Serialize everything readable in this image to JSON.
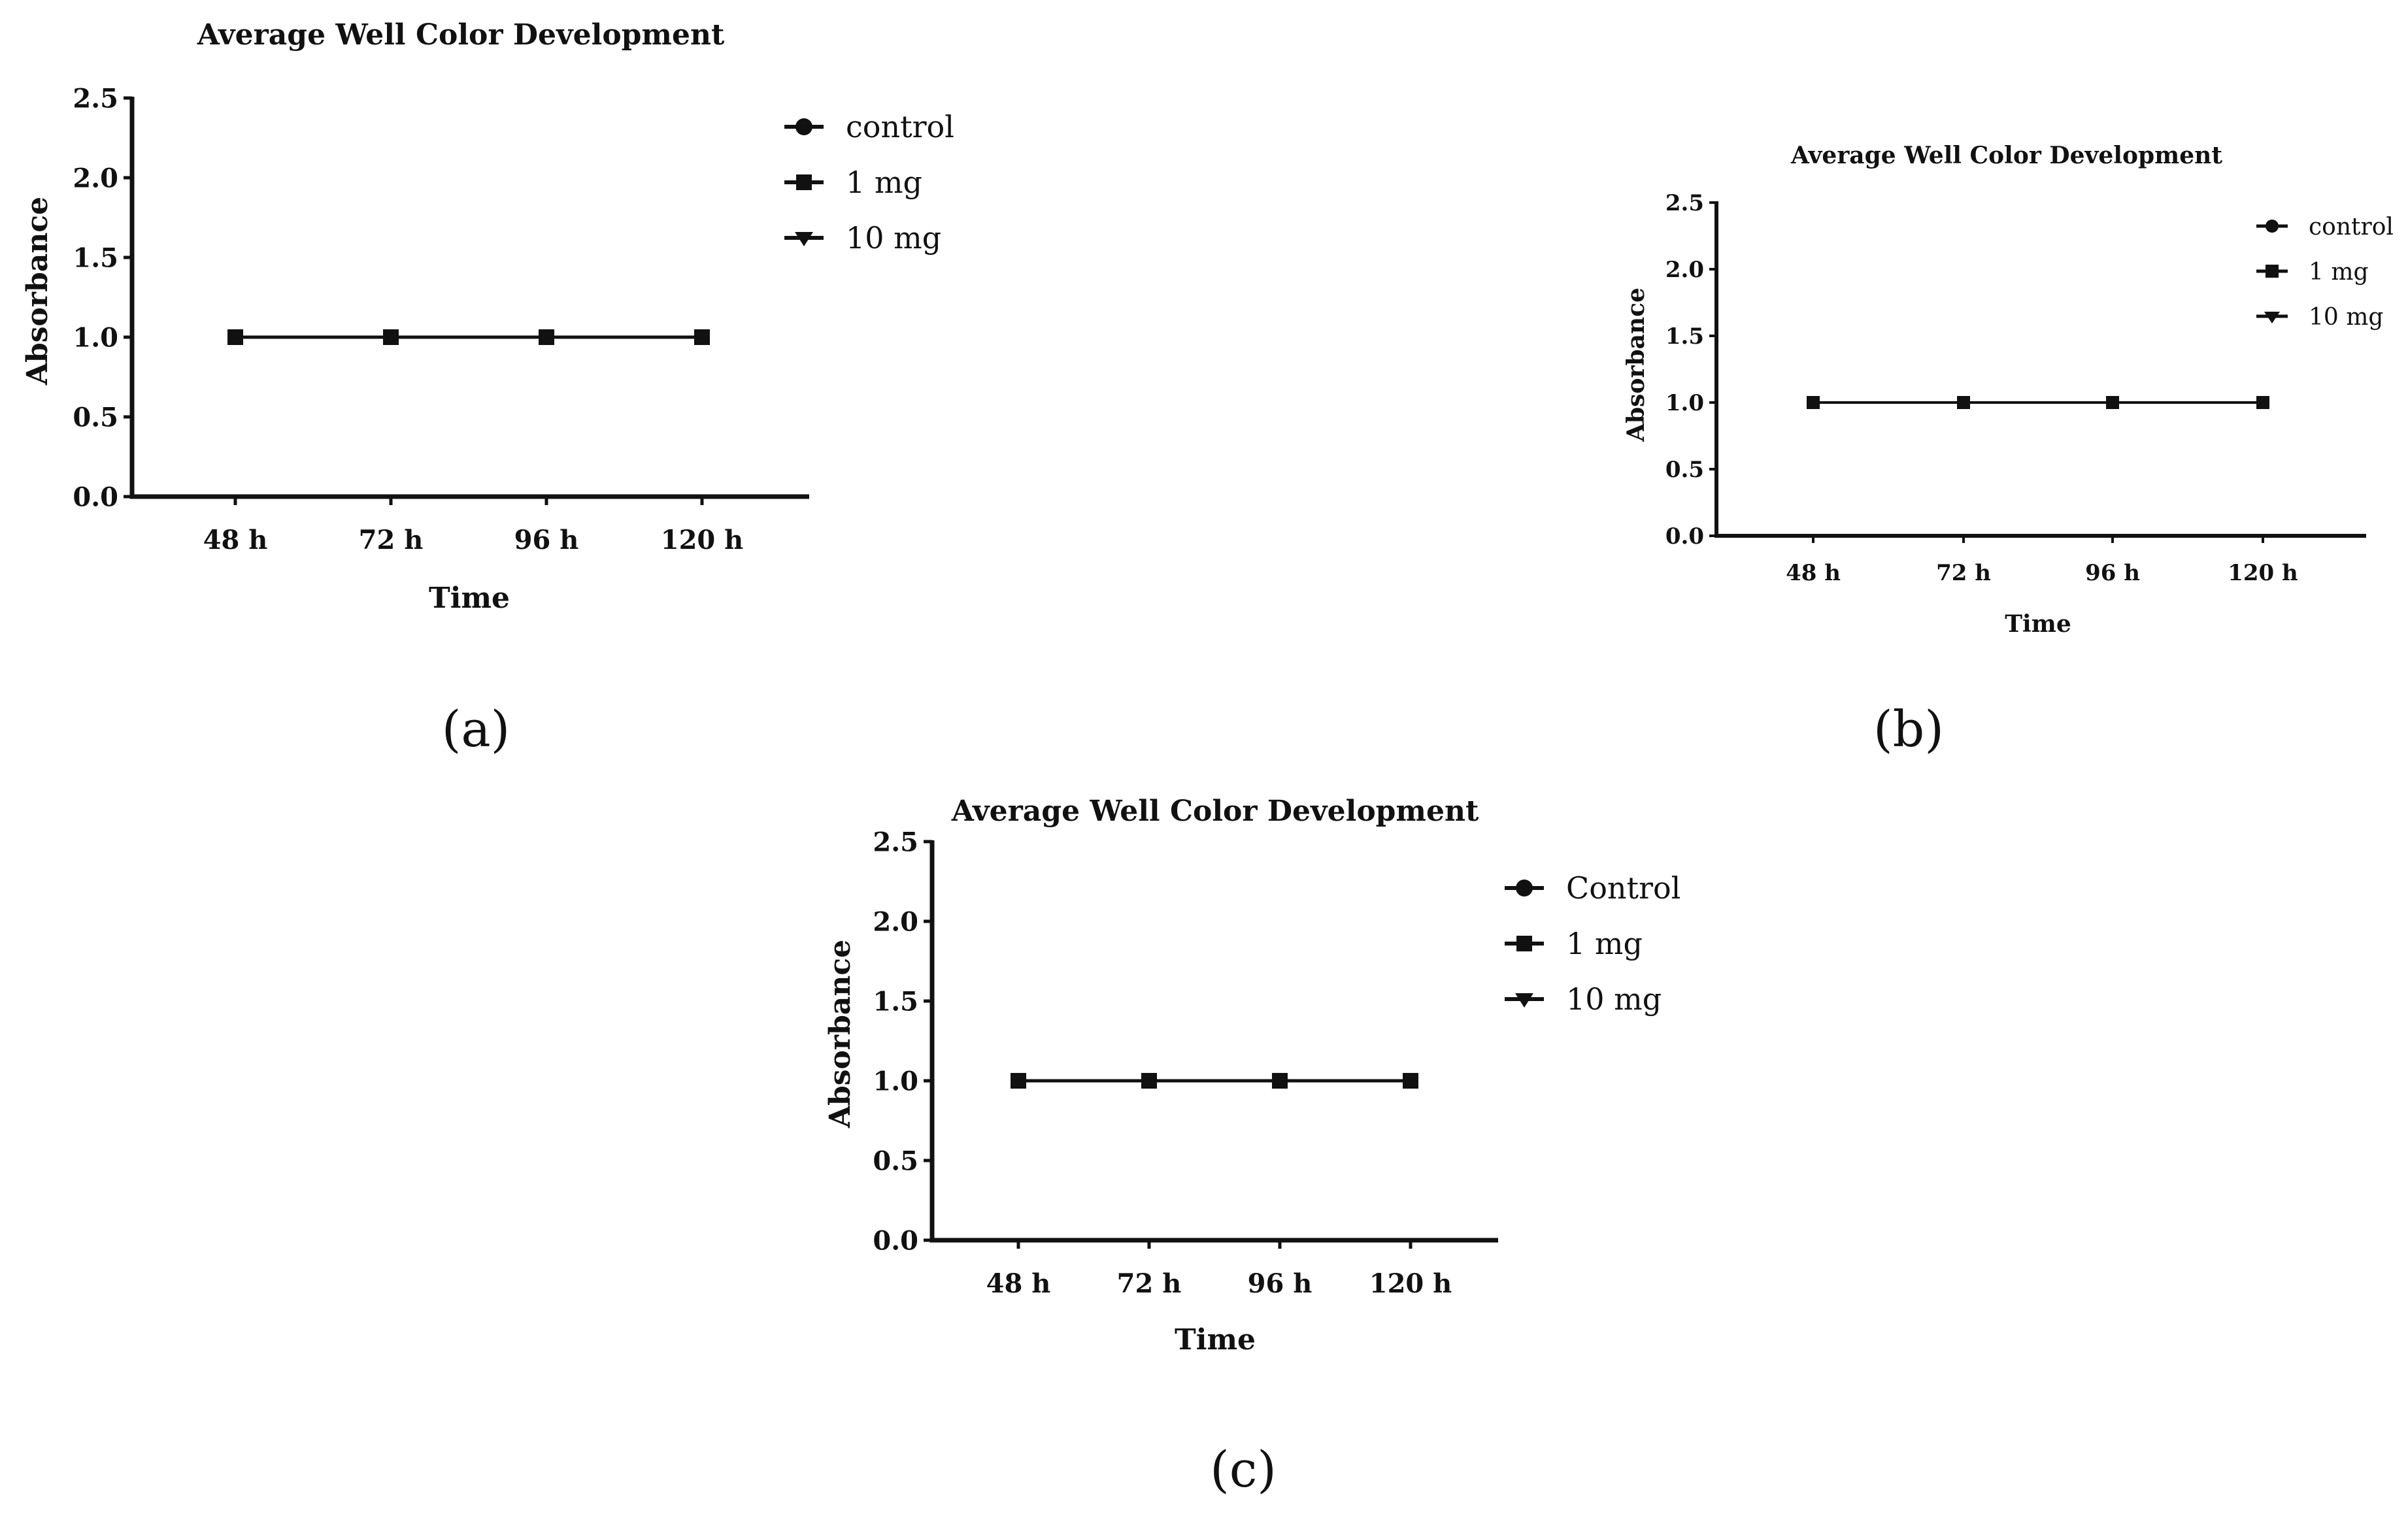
{
  "figure": {
    "panel_labels": [
      "(a)",
      "(b)",
      "(c)"
    ]
  },
  "colors": {
    "ink": "#111111",
    "background": "#ffffff"
  },
  "chart_data": [
    {
      "panel": "(a)",
      "type": "line",
      "title": "Average Well Color Development",
      "xlabel": "Time",
      "ylabel": "Absorbance",
      "categories": [
        "48 h",
        "72 h",
        "96 h",
        "120 h"
      ],
      "ylim": [
        0,
        2.5
      ],
      "yticks": [
        "0.0",
        "0.5",
        "1.0",
        "1.5",
        "2.0",
        "2.5"
      ],
      "legend_position": "top-right",
      "series": [
        {
          "name": "control",
          "marker": "circle",
          "values": [
            1.0,
            1.0,
            1.0,
            1.0
          ]
        },
        {
          "name": "1 mg",
          "marker": "square",
          "values": [
            1.0,
            1.0,
            1.0,
            1.0
          ]
        },
        {
          "name": "10 mg",
          "marker": "triangle-down",
          "values": [
            1.0,
            1.0,
            1.0,
            1.0
          ]
        }
      ]
    },
    {
      "panel": "(b)",
      "type": "line",
      "title": "Average Well Color Development",
      "xlabel": "Time",
      "ylabel": "Absorbance",
      "categories": [
        "48 h",
        "72 h",
        "96 h",
        "120 h"
      ],
      "ylim": [
        0,
        2.5
      ],
      "yticks": [
        "0.0",
        "0.5",
        "1.0",
        "1.5",
        "2.0",
        "2.5"
      ],
      "legend_position": "top-right",
      "series": [
        {
          "name": "control",
          "marker": "circle",
          "values": [
            1.0,
            1.0,
            1.0,
            1.0
          ]
        },
        {
          "name": "1 mg",
          "marker": "square",
          "values": [
            1.0,
            1.0,
            1.0,
            1.0
          ]
        },
        {
          "name": "10 mg",
          "marker": "triangle-down",
          "values": [
            1.0,
            1.0,
            1.0,
            1.0
          ]
        }
      ]
    },
    {
      "panel": "(c)",
      "type": "line",
      "title": "Average Well Color Development",
      "xlabel": "Time",
      "ylabel": "Absorbance",
      "categories": [
        "48 h",
        "72 h",
        "96 h",
        "120 h"
      ],
      "ylim": [
        0,
        2.5
      ],
      "yticks": [
        "0.0",
        "0.5",
        "1.0",
        "1.5",
        "2.0",
        "2.5"
      ],
      "legend_position": "top-right",
      "series": [
        {
          "name": "Control",
          "marker": "circle",
          "values": [
            1.0,
            1.0,
            1.0,
            1.0
          ]
        },
        {
          "name": "1 mg",
          "marker": "square",
          "values": [
            1.0,
            1.0,
            1.0,
            1.0
          ]
        },
        {
          "name": "10 mg",
          "marker": "triangle-down",
          "values": [
            1.0,
            1.0,
            1.0,
            1.0
          ]
        }
      ]
    }
  ]
}
